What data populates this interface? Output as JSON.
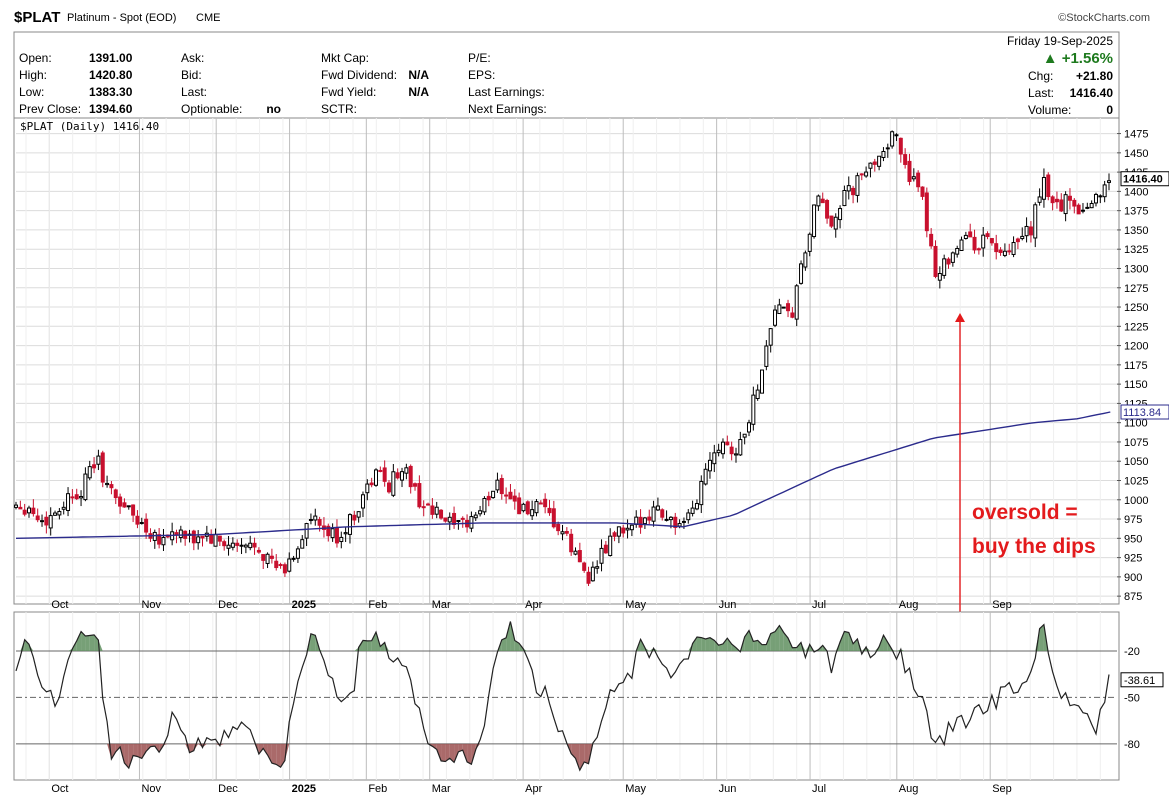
{
  "header": {
    "symbol": "$PLAT",
    "name": "Platinum - Spot (EOD)",
    "exchange": "CME",
    "brand": "©StockCharts.com",
    "date": "Friday  19-Sep-2025",
    "pct_change": "▲ +1.56%",
    "chg_label": "Chg:",
    "chg_value": "+21.80",
    "last_label": "Last:",
    "last_value": "1416.40",
    "volume_label": "Volume:",
    "volume_value": "0"
  },
  "info": {
    "col1": [
      [
        "Open:",
        "1391.00"
      ],
      [
        "High:",
        "1420.80"
      ],
      [
        "Low:",
        "1383.30"
      ],
      [
        "Prev Close:",
        "1394.60"
      ]
    ],
    "col2": [
      [
        "Ask:",
        ""
      ],
      [
        "Bid:",
        ""
      ],
      [
        "Last:",
        ""
      ],
      [
        "Optionable:",
        "no"
      ]
    ],
    "col3": [
      [
        "Mkt Cap:",
        ""
      ],
      [
        "Fwd Dividend:",
        "N/A"
      ],
      [
        "Fwd Yield:",
        "N/A"
      ],
      [
        "SCTR:",
        ""
      ]
    ],
    "col4": [
      "P/E:",
      "EPS:",
      "Last Earnings:",
      "Next Earnings:"
    ]
  },
  "legend": "$PLAT (Daily) 1416.40",
  "annotation": [
    "oversold =",
    "buy the dips"
  ],
  "colors": {
    "up": "#000000",
    "down": "#c8102e",
    "ma": "#2b2b8c",
    "osc": "#222222",
    "overbought_fill": "#5f8f5f",
    "oversold_fill": "#9b5050",
    "annotation": "#e31a1c"
  },
  "chart_data": [
    {
      "type": "candlestick",
      "title": "$PLAT (Daily) 1416.40",
      "ylim": [
        870,
        1490
      ],
      "yticks": [
        875,
        900,
        925,
        950,
        975,
        1000,
        1025,
        1050,
        1075,
        1100,
        1125,
        1150,
        1175,
        1200,
        1225,
        1250,
        1275,
        1300,
        1325,
        1350,
        1375,
        1400,
        1425,
        1450,
        1475
      ],
      "last_label": "1416.40",
      "ma_label": "1113.84",
      "x_months": [
        "Oct",
        "Nov",
        "Dec",
        "2025",
        "Feb",
        "Mar",
        "Apr",
        "May",
        "Jun",
        "Jul",
        "Aug",
        "Sep"
      ],
      "close_path": [
        [
          0,
          995
        ],
        [
          4,
          990
        ],
        [
          8,
          970
        ],
        [
          12,
          985
        ],
        [
          16,
          1005
        ],
        [
          20,
          1015
        ],
        [
          24,
          1055
        ],
        [
          28,
          1010
        ],
        [
          32,
          995
        ],
        [
          36,
          975
        ],
        [
          40,
          960
        ],
        [
          44,
          950
        ],
        [
          48,
          960
        ],
        [
          52,
          945
        ],
        [
          56,
          955
        ],
        [
          60,
          945
        ],
        [
          64,
          940
        ],
        [
          68,
          935
        ],
        [
          72,
          945
        ],
        [
          76,
          920
        ],
        [
          80,
          905
        ],
        [
          84,
          935
        ],
        [
          88,
          975
        ],
        [
          92,
          960
        ],
        [
          96,
          950
        ],
        [
          100,
          970
        ],
        [
          104,
          1005
        ],
        [
          108,
          1035
        ],
        [
          112,
          1020
        ],
        [
          116,
          1045
        ],
        [
          120,
          1005
        ],
        [
          124,
          985
        ],
        [
          128,
          975
        ],
        [
          132,
          960
        ],
        [
          136,
          975
        ],
        [
          140,
          990
        ],
        [
          144,
          1025
        ],
        [
          148,
          1005
        ],
        [
          152,
          985
        ],
        [
          156,
          990
        ],
        [
          160,
          975
        ],
        [
          164,
          955
        ],
        [
          168,
          925
        ],
        [
          172,
          900
        ],
        [
          176,
          930
        ],
        [
          180,
          960
        ],
        [
          184,
          955
        ],
        [
          188,
          980
        ],
        [
          192,
          990
        ],
        [
          196,
          975
        ],
        [
          200,
          960
        ],
        [
          204,
          1000
        ],
        [
          208,
          1060
        ],
        [
          212,
          1080
        ],
        [
          216,
          1060
        ],
        [
          220,
          1110
        ],
        [
          224,
          1180
        ],
        [
          228,
          1260
        ],
        [
          232,
          1230
        ],
        [
          236,
          1310
        ],
        [
          240,
          1390
        ],
        [
          244,
          1360
        ],
        [
          248,
          1390
        ],
        [
          252,
          1410
        ],
        [
          256,
          1430
        ],
        [
          260,
          1460
        ],
        [
          264,
          1470
        ],
        [
          268,
          1420
        ],
        [
          272,
          1380
        ],
        [
          276,
          1290
        ],
        [
          280,
          1320
        ],
        [
          284,
          1340
        ],
        [
          288,
          1330
        ],
        [
          292,
          1340
        ],
        [
          296,
          1310
        ],
        [
          300,
          1330
        ],
        [
          304,
          1350
        ],
        [
          308,
          1410
        ],
        [
          312,
          1380
        ],
        [
          316,
          1390
        ],
        [
          320,
          1375
        ],
        [
          324,
          1395
        ],
        [
          328,
          1416.4
        ]
      ],
      "ma_path": [
        [
          0,
          950
        ],
        [
          60,
          955
        ],
        [
          100,
          965
        ],
        [
          140,
          970
        ],
        [
          180,
          970
        ],
        [
          200,
          965
        ],
        [
          215,
          980
        ],
        [
          230,
          1010
        ],
        [
          245,
          1040
        ],
        [
          260,
          1060
        ],
        [
          275,
          1080
        ],
        [
          290,
          1090
        ],
        [
          305,
          1100
        ],
        [
          318,
          1105
        ],
        [
          328,
          1113.84
        ]
      ]
    },
    {
      "type": "oscillator",
      "title": "",
      "ylim": [
        -100,
        0
      ],
      "levels": [
        -20,
        -50,
        -80
      ],
      "last_label": "-38.61",
      "x_months": [
        "Oct",
        "Nov",
        "Dec",
        "2025",
        "Feb",
        "Mar",
        "Apr",
        "May",
        "Jun",
        "Jul",
        "Aug",
        "Sep"
      ],
      "path": [
        [
          0,
          -30
        ],
        [
          4,
          -12
        ],
        [
          8,
          -40
        ],
        [
          12,
          -55
        ],
        [
          16,
          -20
        ],
        [
          20,
          -5
        ],
        [
          24,
          -5
        ],
        [
          28,
          -85
        ],
        [
          32,
          -90
        ],
        [
          36,
          -95
        ],
        [
          40,
          -75
        ],
        [
          44,
          -80
        ],
        [
          48,
          -60
        ],
        [
          52,
          -80
        ],
        [
          56,
          -80
        ],
        [
          60,
          -75
        ],
        [
          64,
          -78
        ],
        [
          68,
          -65
        ],
        [
          72,
          -80
        ],
        [
          76,
          -95
        ],
        [
          80,
          -90
        ],
        [
          84,
          -50
        ],
        [
          88,
          -8
        ],
        [
          92,
          -25
        ],
        [
          96,
          -45
        ],
        [
          100,
          -55
        ],
        [
          104,
          -10
        ],
        [
          108,
          -8
        ],
        [
          112,
          -20
        ],
        [
          116,
          -30
        ],
        [
          120,
          -50
        ],
        [
          124,
          -80
        ],
        [
          128,
          -92
        ],
        [
          132,
          -85
        ],
        [
          136,
          -95
        ],
        [
          140,
          -70
        ],
        [
          144,
          -25
        ],
        [
          148,
          -5
        ],
        [
          152,
          -20
        ],
        [
          156,
          -40
        ],
        [
          160,
          -55
        ],
        [
          164,
          -75
        ],
        [
          168,
          -95
        ],
        [
          172,
          -90
        ],
        [
          176,
          -65
        ],
        [
          180,
          -40
        ],
        [
          184,
          -35
        ],
        [
          188,
          -15
        ],
        [
          192,
          -25
        ],
        [
          196,
          -35
        ],
        [
          200,
          -30
        ],
        [
          204,
          -10
        ],
        [
          208,
          -15
        ],
        [
          212,
          -10
        ],
        [
          216,
          -25
        ],
        [
          220,
          -8
        ],
        [
          224,
          -20
        ],
        [
          228,
          -5
        ],
        [
          232,
          -10
        ],
        [
          236,
          -20
        ],
        [
          240,
          -15
        ],
        [
          244,
          -30
        ],
        [
          248,
          -10
        ],
        [
          252,
          -15
        ],
        [
          256,
          -25
        ],
        [
          260,
          -10
        ],
        [
          264,
          -20
        ],
        [
          268,
          -35
        ],
        [
          272,
          -55
        ],
        [
          276,
          -85
        ],
        [
          280,
          -70
        ],
        [
          284,
          -65
        ],
        [
          288,
          -60
        ],
        [
          292,
          -55
        ],
        [
          296,
          -45
        ],
        [
          300,
          -50
        ],
        [
          304,
          -30
        ],
        [
          308,
          -5
        ],
        [
          312,
          -45
        ],
        [
          316,
          -55
        ],
        [
          320,
          -60
        ],
        [
          324,
          -70
        ],
        [
          328,
          -38.61
        ]
      ]
    }
  ]
}
